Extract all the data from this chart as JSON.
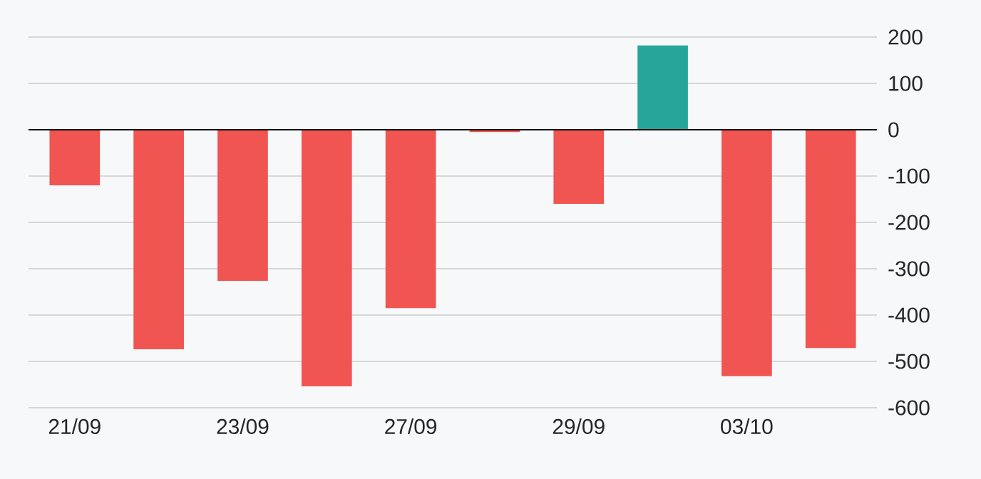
{
  "chart_data": {
    "type": "bar",
    "categories": [
      "21/09",
      null,
      "23/09",
      null,
      "27/09",
      null,
      "29/09",
      null,
      "03/10",
      null
    ],
    "values": [
      -120,
      -474,
      -326,
      -554,
      -385,
      -5,
      -160,
      182,
      -532,
      -471
    ],
    "colors": [
      "#f05552",
      "#f05552",
      "#f05552",
      "#f05552",
      "#f05552",
      "#f05552",
      "#f05552",
      "#26a69a",
      "#f05552",
      "#f05552"
    ],
    "ylim": [
      -600,
      200
    ],
    "yticks": [
      -600,
      -500,
      -400,
      -300,
      -200,
      -100,
      0,
      100,
      200
    ],
    "grid": "y",
    "ref_lines": [
      {
        "axis": "y",
        "value": 0,
        "color": "#000000"
      }
    ]
  }
}
